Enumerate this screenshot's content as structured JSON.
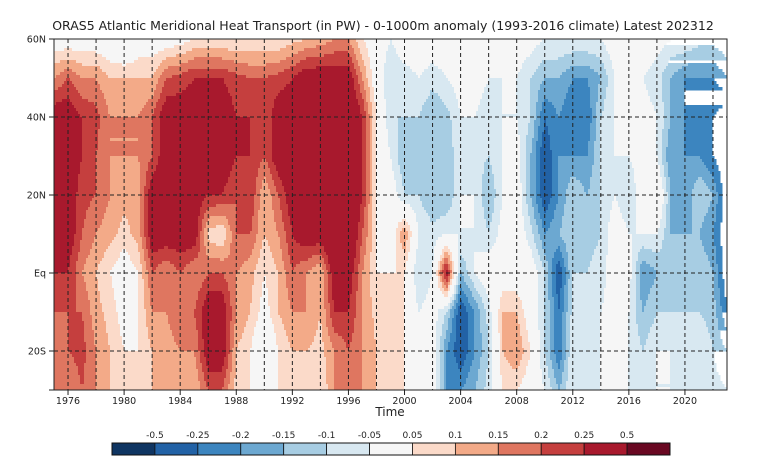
{
  "chart_data": {
    "type": "heatmap",
    "title": "ORAS5 Atlantic Meridional Heat Transport (in PW) - 0-1000m anomaly (1993-2016 climate) Latest 202312",
    "xlabel": "Time",
    "ylabel": "",
    "xlim": [
      1975,
      2023
    ],
    "ylim": [
      -30,
      60
    ],
    "x_ticks": [
      1976,
      1980,
      1984,
      1988,
      1992,
      1996,
      2000,
      2004,
      2008,
      2012,
      2016,
      2020
    ],
    "x_gridlines_every_years": 2,
    "y_ticks": [
      {
        "value": 60,
        "label": "60N"
      },
      {
        "value": 40,
        "label": "40N"
      },
      {
        "value": 20,
        "label": "20N"
      },
      {
        "value": 0,
        "label": "Eq"
      },
      {
        "value": -20,
        "label": "20S"
      },
      {
        "value": -30,
        "label": ""
      }
    ],
    "y_gridlines": [
      40,
      20,
      0,
      -20
    ],
    "grid": "dashed",
    "colorbar": {
      "levels": [
        -0.5,
        -0.25,
        -0.2,
        -0.15,
        -0.1,
        -0.05,
        0.05,
        0.1,
        0.15,
        0.2,
        0.25,
        0.5
      ],
      "labels": [
        "-0.5",
        "-0.25",
        "-0.2",
        "-0.15",
        "-0.1",
        "-0.05",
        "0.05",
        "0.1",
        "0.15",
        "0.2",
        "0.25",
        "0.5"
      ],
      "colors": [
        "#0f3562",
        "#2262a6",
        "#3c85bf",
        "#6ca8d1",
        "#a7cde3",
        "#d8e8f1",
        "#f6f6f6",
        "#fbdac9",
        "#f3aa88",
        "#df7660",
        "#c53f3e",
        "#a8192d",
        "#690822"
      ],
      "placement": "bottom"
    },
    "years": [
      1975,
      1976,
      1977,
      1978,
      1979,
      1980,
      1981,
      1982,
      1983,
      1984,
      1985,
      1986,
      1987,
      1988,
      1989,
      1990,
      1991,
      1992,
      1993,
      1994,
      1995,
      1996,
      1997,
      1998,
      1999,
      2000,
      2001,
      2002,
      2003,
      2004,
      2005,
      2006,
      2007,
      2008,
      2009,
      2010,
      2011,
      2012,
      2013,
      2014,
      2015,
      2016,
      2017,
      2018,
      2019,
      2020,
      2021,
      2022,
      2023
    ],
    "latitudes": [
      -30,
      -20,
      -10,
      0,
      10,
      20,
      30,
      40,
      50,
      60
    ],
    "values": [
      [
        0.15,
        0.15,
        0.2,
        0.25,
        0.3,
        0.3,
        0.3,
        0.3,
        0.15,
        0.0
      ],
      [
        0.15,
        0.2,
        0.2,
        0.25,
        0.3,
        0.3,
        0.3,
        0.3,
        0.2,
        0.0
      ],
      [
        0.2,
        0.22,
        0.2,
        0.15,
        0.2,
        0.22,
        0.25,
        0.25,
        0.15,
        0.0
      ],
      [
        0.15,
        0.15,
        0.12,
        0.1,
        0.15,
        0.2,
        0.2,
        0.22,
        0.15,
        0.0
      ],
      [
        0.1,
        0.1,
        0.08,
        0.05,
        0.12,
        0.15,
        0.15,
        0.15,
        0.1,
        -0.02
      ],
      [
        0.05,
        0.05,
        0.02,
        0.0,
        0.08,
        0.12,
        0.15,
        0.15,
        0.1,
        -0.05
      ],
      [
        0.05,
        0.05,
        0.05,
        0.05,
        0.12,
        0.12,
        0.15,
        0.15,
        0.1,
        0.0
      ],
      [
        0.1,
        0.1,
        0.15,
        0.2,
        0.3,
        0.3,
        0.2,
        0.2,
        0.1,
        0.0
      ],
      [
        0.1,
        0.12,
        0.15,
        0.15,
        0.3,
        0.3,
        0.3,
        0.3,
        0.2,
        0.0
      ],
      [
        0.15,
        0.15,
        0.2,
        0.2,
        0.3,
        0.3,
        0.3,
        0.3,
        0.22,
        0.02
      ],
      [
        0.1,
        0.15,
        0.2,
        0.15,
        0.3,
        0.3,
        0.3,
        0.3,
        0.25,
        0.05
      ],
      [
        0.2,
        0.3,
        0.3,
        0.2,
        0.08,
        0.25,
        0.3,
        0.3,
        0.25,
        0.05
      ],
      [
        0.2,
        0.3,
        0.3,
        0.2,
        0.05,
        0.25,
        0.3,
        0.3,
        0.25,
        0.05
      ],
      [
        0.08,
        0.1,
        0.15,
        0.15,
        0.2,
        0.2,
        0.25,
        0.25,
        0.22,
        0.05
      ],
      [
        0.05,
        0.05,
        0.1,
        0.12,
        0.2,
        0.25,
        0.25,
        0.25,
        0.2,
        0.05
      ],
      [
        0.0,
        -0.05,
        0.02,
        0.05,
        0.1,
        0.1,
        0.2,
        0.2,
        0.2,
        0.05
      ],
      [
        0.05,
        0.05,
        0.1,
        0.1,
        0.15,
        0.2,
        0.3,
        0.3,
        0.22,
        0.05
      ],
      [
        0.1,
        0.1,
        0.15,
        0.2,
        0.25,
        0.3,
        0.3,
        0.3,
        0.25,
        0.08
      ],
      [
        0.05,
        0.1,
        0.15,
        0.15,
        0.3,
        0.35,
        0.35,
        0.35,
        0.3,
        0.1
      ],
      [
        0.05,
        0.08,
        0.1,
        0.1,
        0.3,
        0.3,
        0.3,
        0.3,
        0.3,
        0.12
      ],
      [
        0.15,
        0.15,
        0.25,
        0.3,
        0.35,
        0.35,
        0.35,
        0.35,
        0.3,
        0.15
      ],
      [
        0.2,
        0.2,
        0.25,
        0.3,
        0.35,
        0.35,
        0.35,
        0.35,
        0.3,
        0.15
      ],
      [
        0.15,
        0.15,
        0.15,
        0.15,
        0.2,
        0.25,
        0.25,
        0.25,
        0.15,
        0.05
      ],
      [
        0.1,
        0.1,
        0.08,
        0.05,
        0.05,
        0.05,
        0.05,
        0.05,
        0.0,
        0.0
      ],
      [
        0.05,
        0.05,
        0.05,
        0.05,
        0.0,
        0.0,
        -0.05,
        -0.1,
        -0.1,
        -0.05
      ],
      [
        0.05,
        0.05,
        0.05,
        0.05,
        0.15,
        -0.1,
        -0.15,
        -0.1,
        -0.08,
        0.0
      ],
      [
        0.0,
        -0.02,
        -0.05,
        -0.1,
        -0.05,
        -0.1,
        -0.1,
        -0.1,
        -0.05,
        0.0
      ],
      [
        0.0,
        0.0,
        -0.02,
        -0.05,
        -0.08,
        -0.15,
        -0.15,
        -0.15,
        -0.08,
        0.0
      ],
      [
        -0.2,
        -0.2,
        -0.1,
        0.3,
        -0.05,
        -0.15,
        -0.15,
        -0.12,
        -0.05,
        0.0
      ],
      [
        -0.2,
        -0.3,
        -0.3,
        -0.15,
        -0.05,
        -0.05,
        -0.05,
        -0.05,
        -0.02,
        0.0
      ],
      [
        -0.15,
        -0.2,
        -0.2,
        -0.05,
        -0.05,
        -0.05,
        -0.08,
        -0.05,
        0.0,
        0.0
      ],
      [
        -0.08,
        -0.1,
        -0.08,
        0.0,
        -0.1,
        -0.15,
        -0.1,
        -0.1,
        -0.05,
        0.0
      ],
      [
        0.05,
        0.1,
        0.1,
        0.0,
        -0.02,
        -0.05,
        -0.05,
        -0.05,
        -0.05,
        0.0
      ],
      [
        0.05,
        0.15,
        0.1,
        0.0,
        0.0,
        0.0,
        -0.02,
        -0.05,
        -0.05,
        0.0
      ],
      [
        0.0,
        0.05,
        0.0,
        0.0,
        -0.08,
        -0.15,
        -0.15,
        -0.1,
        -0.1,
        -0.02
      ],
      [
        -0.05,
        -0.1,
        -0.1,
        -0.1,
        -0.2,
        -0.3,
        -0.3,
        -0.25,
        -0.15,
        -0.05
      ],
      [
        -0.15,
        -0.25,
        -0.25,
        -0.3,
        -0.15,
        -0.2,
        -0.2,
        -0.2,
        -0.15,
        -0.05
      ],
      [
        -0.05,
        -0.05,
        -0.08,
        -0.1,
        -0.1,
        -0.1,
        -0.2,
        -0.25,
        -0.2,
        -0.05
      ],
      [
        -0.05,
        -0.08,
        -0.1,
        -0.1,
        -0.12,
        -0.15,
        -0.2,
        -0.25,
        -0.2,
        -0.05
      ],
      [
        -0.05,
        -0.05,
        -0.05,
        -0.08,
        -0.1,
        -0.1,
        -0.1,
        -0.1,
        -0.15,
        -0.05
      ],
      [
        0.0,
        0.0,
        -0.02,
        0.0,
        0.0,
        -0.05,
        -0.05,
        -0.05,
        -0.05,
        0.0
      ],
      [
        -0.05,
        -0.05,
        -0.05,
        -0.02,
        -0.05,
        -0.1,
        -0.05,
        -0.02,
        0.0,
        0.0
      ],
      [
        -0.08,
        -0.1,
        -0.15,
        -0.2,
        -0.05,
        0.0,
        -0.02,
        -0.02,
        -0.05,
        0.0
      ],
      [
        -0.05,
        -0.05,
        -0.1,
        -0.15,
        -0.05,
        0.05,
        -0.05,
        -0.05,
        -0.08,
        -0.02
      ],
      [
        -0.05,
        -0.05,
        -0.1,
        -0.1,
        -0.15,
        -0.15,
        -0.2,
        -0.15,
        -0.15,
        -0.05
      ],
      [
        -0.1,
        -0.1,
        -0.1,
        -0.12,
        -0.15,
        -0.2,
        -0.2,
        -0.2,
        -0.2,
        -0.05
      ],
      [
        -0.05,
        -0.05,
        -0.1,
        -0.1,
        -0.15,
        -0.1,
        -0.2,
        -0.25,
        -0.2,
        -0.08
      ],
      [
        -0.08,
        -0.1,
        -0.12,
        -0.15,
        -0.2,
        -0.15,
        -0.25,
        -0.25,
        -0.2,
        -0.08
      ],
      [
        -0.1,
        -0.15,
        -0.25,
        -0.3,
        -0.3,
        -0.3,
        -0.3,
        -0.3,
        -0.15,
        -0.05
      ]
    ]
  }
}
